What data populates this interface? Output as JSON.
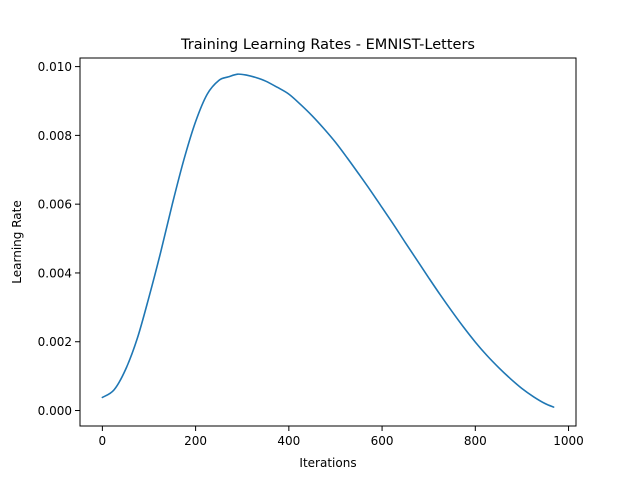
{
  "chart_data": {
    "type": "line",
    "title": "Training Learning Rates - EMNIST-Letters",
    "xlabel": "Iterations",
    "ylabel": "Learning Rate",
    "xlim": [
      -48,
      1016
    ],
    "ylim": [
      -0.00045,
      0.01025
    ],
    "xticks": [
      0,
      200,
      400,
      600,
      800,
      1000
    ],
    "xtick_labels": [
      "0",
      "200",
      "400",
      "600",
      "800",
      "1000"
    ],
    "yticks": [
      0.0,
      0.002,
      0.004,
      0.006,
      0.008,
      0.01
    ],
    "ytick_labels": [
      "0.000",
      "0.002",
      "0.004",
      "0.006",
      "0.008",
      "0.010"
    ],
    "grid": false,
    "line_color": "#1f77b4",
    "series": [
      {
        "x": [
          0,
          25,
          50,
          75,
          100,
          125,
          150,
          175,
          200,
          225,
          250,
          270,
          290,
          310,
          330,
          350,
          375,
          400,
          425,
          450,
          475,
          500,
          525,
          550,
          575,
          600,
          625,
          650,
          675,
          700,
          725,
          750,
          775,
          800,
          825,
          850,
          875,
          900,
          925,
          950,
          968
        ],
        "values": [
          0.00038,
          0.0006,
          0.0012,
          0.0021,
          0.0033,
          0.0046,
          0.006,
          0.0073,
          0.0084,
          0.0092,
          0.0096,
          0.0097,
          0.00978,
          0.00975,
          0.00968,
          0.00958,
          0.0094,
          0.0092,
          0.0089,
          0.00857,
          0.0082,
          0.0078,
          0.00735,
          0.00688,
          0.0064,
          0.0059,
          0.0054,
          0.00488,
          0.00437,
          0.00386,
          0.00336,
          0.00288,
          0.00242,
          0.00199,
          0.0016,
          0.00125,
          0.00093,
          0.00064,
          0.0004,
          0.0002,
          0.0001
        ]
      }
    ]
  }
}
